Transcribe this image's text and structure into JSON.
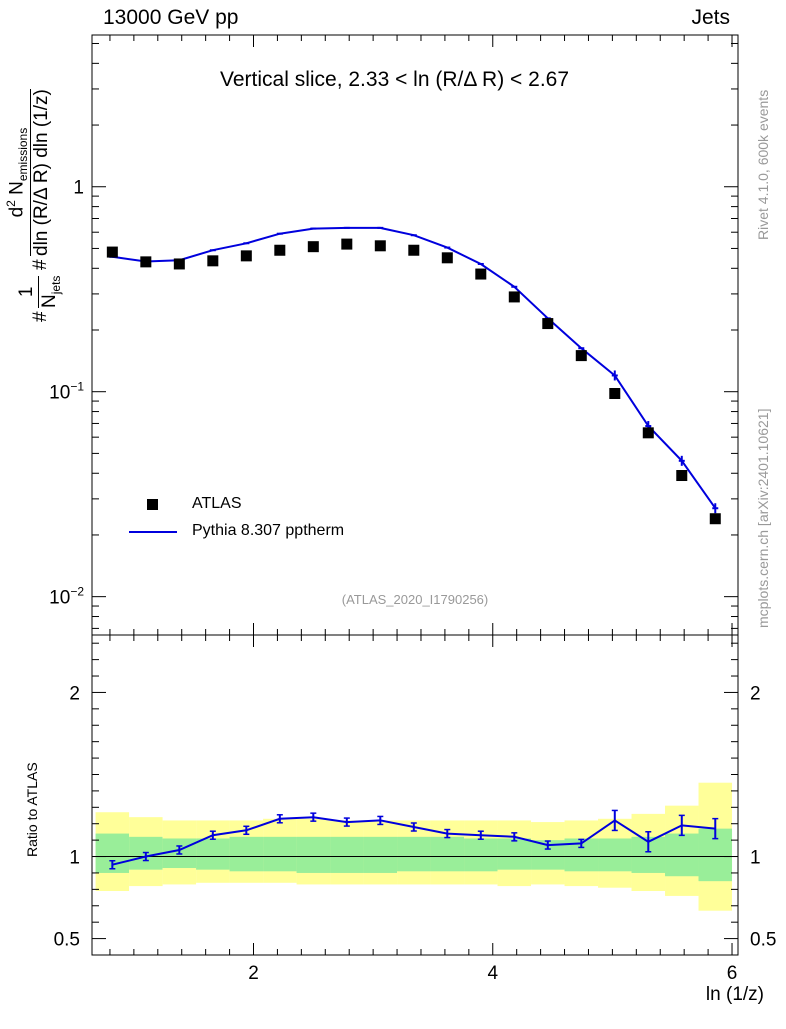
{
  "header": {
    "energy_label": "13000 GeV pp",
    "category_label": "Jets"
  },
  "side_labels": {
    "rivet": "Rivet 4.1.0,  600k events",
    "source": "mcplots.cern.ch [arXiv:2401.10621]"
  },
  "analysis_tag": "(ATLAS_2020_I1790256)",
  "chart_data": [
    {
      "type": "scatter",
      "title": "Vertical slice, 2.33 < ln (R/Δ R) < 2.67",
      "xlabel": "ln (1/z)",
      "ylabel": "1/N_jets dN_emissions / dln(R/ΔR) dln(1/z)",
      "yscale": "log",
      "xlim": [
        0.65,
        6.05
      ],
      "ylim": [
        0.0065,
        5.5
      ],
      "y_tick_labels": [
        "10^-2",
        "10^-1",
        "1"
      ],
      "legend": [
        "ATLAS",
        "Pythia 8.307 pptherm"
      ],
      "series": [
        {
          "name": "ATLAS",
          "x": [
            0.82,
            1.1,
            1.38,
            1.66,
            1.94,
            2.22,
            2.5,
            2.78,
            3.06,
            3.34,
            3.62,
            3.9,
            4.18,
            4.46,
            4.74,
            5.02,
            5.3,
            5.58,
            5.86
          ],
          "y": [
            0.48,
            0.43,
            0.42,
            0.435,
            0.46,
            0.49,
            0.51,
            0.525,
            0.515,
            0.49,
            0.45,
            0.375,
            0.29,
            0.215,
            0.15,
            0.098,
            0.063,
            0.039,
            0.024
          ]
        },
        {
          "name": "Pythia 8.307 pptherm",
          "x": [
            0.82,
            1.1,
            1.38,
            1.66,
            1.94,
            2.22,
            2.5,
            2.78,
            3.06,
            3.34,
            3.62,
            3.9,
            4.18,
            4.46,
            4.74,
            5.02,
            5.3,
            5.58,
            5.86
          ],
          "y": [
            0.455,
            0.432,
            0.438,
            0.49,
            0.53,
            0.59,
            0.625,
            0.63,
            0.63,
            0.58,
            0.505,
            0.42,
            0.325,
            0.228,
            0.163,
            0.12,
            0.068,
            0.046,
            0.027
          ]
        }
      ]
    },
    {
      "type": "line",
      "title": "",
      "xlabel": "ln (1/z)",
      "ylabel": "Ratio to ATLAS",
      "xlim": [
        0.65,
        6.05
      ],
      "ylim": [
        0.4,
        2.35
      ],
      "x_ticks": [
        2,
        4,
        6
      ],
      "y_ticks": [
        0.5,
        1,
        2
      ],
      "series": [
        {
          "name": "Pythia 8.307 pptherm / ATLAS",
          "x": [
            0.82,
            1.1,
            1.38,
            1.66,
            1.94,
            2.22,
            2.5,
            2.78,
            3.06,
            3.34,
            3.62,
            3.9,
            4.18,
            4.46,
            4.74,
            5.02,
            5.3,
            5.58,
            5.86
          ],
          "y": [
            0.95,
            1.0,
            1.04,
            1.13,
            1.16,
            1.23,
            1.24,
            1.21,
            1.22,
            1.18,
            1.14,
            1.13,
            1.12,
            1.07,
            1.08,
            1.22,
            1.09,
            1.19,
            1.17
          ]
        }
      ],
      "bands": {
        "bin_edges": [
          0.68,
          0.96,
          1.24,
          1.52,
          1.8,
          2.08,
          2.36,
          2.64,
          2.92,
          3.2,
          3.48,
          3.76,
          4.04,
          4.32,
          4.6,
          4.88,
          5.16,
          5.44,
          5.72,
          6.0
        ],
        "stat_lo": [
          0.9,
          0.92,
          0.93,
          0.92,
          0.91,
          0.91,
          0.9,
          0.9,
          0.9,
          0.91,
          0.91,
          0.91,
          0.92,
          0.92,
          0.91,
          0.91,
          0.9,
          0.88,
          0.85
        ],
        "stat_hi": [
          1.14,
          1.12,
          1.11,
          1.11,
          1.12,
          1.12,
          1.12,
          1.12,
          1.12,
          1.12,
          1.12,
          1.11,
          1.11,
          1.1,
          1.11,
          1.11,
          1.12,
          1.14,
          1.17
        ],
        "total_lo": [
          0.79,
          0.82,
          0.83,
          0.84,
          0.84,
          0.84,
          0.83,
          0.83,
          0.83,
          0.83,
          0.83,
          0.83,
          0.82,
          0.83,
          0.82,
          0.81,
          0.79,
          0.76,
          0.67
        ],
        "total_hi": [
          1.27,
          1.24,
          1.22,
          1.22,
          1.22,
          1.23,
          1.23,
          1.22,
          1.22,
          1.22,
          1.22,
          1.22,
          1.22,
          1.21,
          1.22,
          1.23,
          1.26,
          1.31,
          1.45
        ]
      }
    }
  ],
  "colors": {
    "data": "#000000",
    "mc": "#0000dd",
    "stat_band": "#99ee99",
    "total_band": "#ffff99",
    "faint_text": "#999999"
  }
}
